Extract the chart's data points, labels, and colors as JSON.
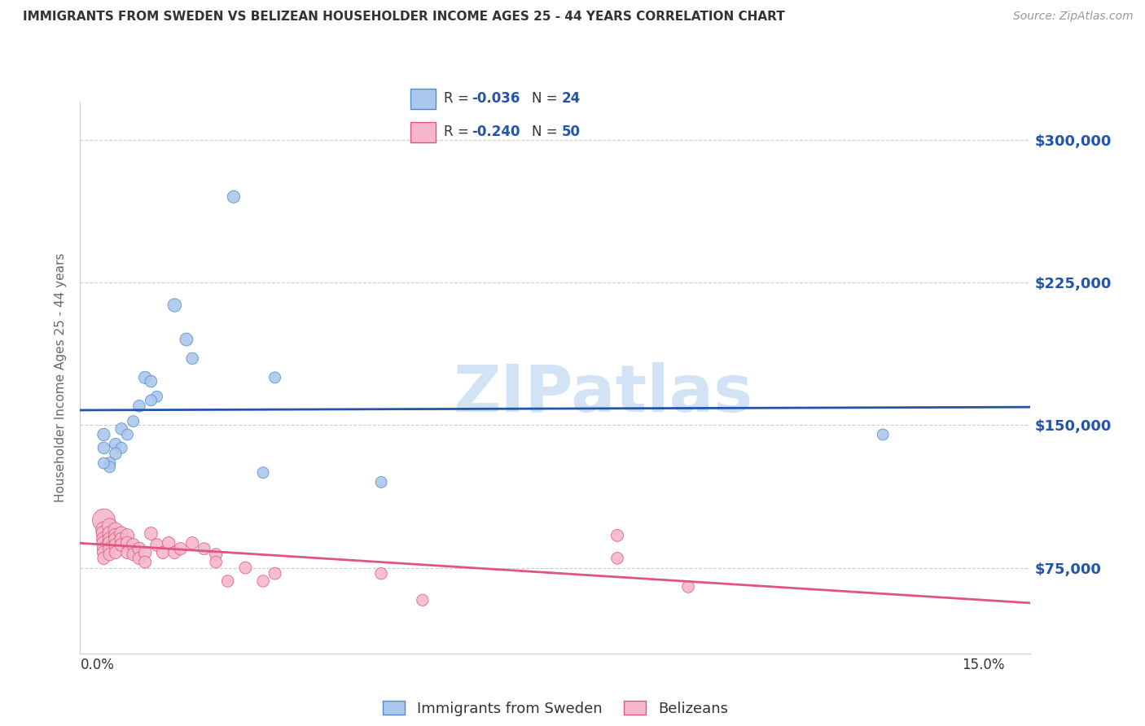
{
  "title": "IMMIGRANTS FROM SWEDEN VS BELIZEAN HOUSEHOLDER INCOME AGES 25 - 44 YEARS CORRELATION CHART",
  "source": "Source: ZipAtlas.com",
  "ylabel": "Householder Income Ages 25 - 44 years",
  "ytick_labels": [
    "$75,000",
    "$150,000",
    "$225,000",
    "$300,000"
  ],
  "ytick_values": [
    75000,
    150000,
    225000,
    300000
  ],
  "ylim": [
    30000,
    320000
  ],
  "xlim": [
    -0.003,
    0.158
  ],
  "xtick_positions": [
    0.0,
    0.15
  ],
  "xtick_labels": [
    "0.0%",
    "15.0%"
  ],
  "legend_sweden_R": "-0.036",
  "legend_sweden_N": "24",
  "legend_belize_R": "-0.240",
  "legend_belize_N": "50",
  "sweden_line_color": "#2255aa",
  "belize_line_color": "#e05580",
  "sweden_scatter_color": "#aac8ed",
  "belize_scatter_color": "#f5b8cb",
  "sweden_scatter_edge": "#5588cc",
  "belize_scatter_edge": "#e05580",
  "watermark": "ZIPatlas",
  "watermark_color": "#cde0f5",
  "background_color": "#ffffff",
  "grid_color": "#cccccc",
  "legend_top_R_color": "#2255aa",
  "legend_top_N_color": "#2255aa",
  "sweden_points_x": [
    0.023,
    0.013,
    0.015,
    0.016,
    0.008,
    0.009,
    0.01,
    0.009,
    0.007,
    0.006,
    0.004,
    0.005,
    0.003,
    0.004,
    0.003,
    0.002,
    0.002,
    0.001,
    0.001,
    0.001,
    0.03,
    0.028,
    0.048,
    0.133
  ],
  "sweden_points_y": [
    270000,
    213000,
    195000,
    185000,
    175000,
    173000,
    165000,
    163000,
    160000,
    152000,
    148000,
    145000,
    140000,
    138000,
    135000,
    130000,
    128000,
    145000,
    138000,
    130000,
    175000,
    125000,
    120000,
    145000
  ],
  "sweden_point_sizes": [
    120,
    140,
    130,
    110,
    120,
    110,
    100,
    100,
    110,
    100,
    110,
    100,
    110,
    100,
    110,
    110,
    100,
    120,
    110,
    100,
    100,
    100,
    100,
    100
  ],
  "belize_points_x": [
    0.001,
    0.001,
    0.001,
    0.001,
    0.001,
    0.001,
    0.001,
    0.001,
    0.002,
    0.002,
    0.002,
    0.002,
    0.002,
    0.002,
    0.003,
    0.003,
    0.003,
    0.003,
    0.003,
    0.004,
    0.004,
    0.004,
    0.005,
    0.005,
    0.005,
    0.006,
    0.006,
    0.007,
    0.007,
    0.008,
    0.008,
    0.009,
    0.01,
    0.011,
    0.012,
    0.013,
    0.014,
    0.016,
    0.018,
    0.02,
    0.02,
    0.022,
    0.025,
    0.028,
    0.03,
    0.048,
    0.055,
    0.088,
    0.088,
    0.1
  ],
  "belize_points_y": [
    100000,
    95000,
    93000,
    90000,
    88000,
    85000,
    83000,
    80000,
    97000,
    93000,
    90000,
    88000,
    85000,
    82000,
    95000,
    92000,
    90000,
    87000,
    83000,
    93000,
    90000,
    87000,
    92000,
    88000,
    83000,
    87000,
    82000,
    85000,
    80000,
    83000,
    78000,
    93000,
    87000,
    83000,
    88000,
    83000,
    85000,
    88000,
    85000,
    82000,
    78000,
    68000,
    75000,
    68000,
    72000,
    72000,
    58000,
    92000,
    80000,
    65000
  ],
  "belize_point_sizes": [
    400,
    200,
    180,
    160,
    150,
    140,
    130,
    120,
    180,
    160,
    150,
    140,
    130,
    120,
    160,
    150,
    140,
    130,
    120,
    150,
    140,
    130,
    140,
    130,
    120,
    130,
    120,
    130,
    120,
    125,
    115,
    130,
    125,
    120,
    125,
    120,
    120,
    120,
    115,
    115,
    110,
    110,
    115,
    110,
    115,
    110,
    105,
    115,
    110,
    110
  ]
}
